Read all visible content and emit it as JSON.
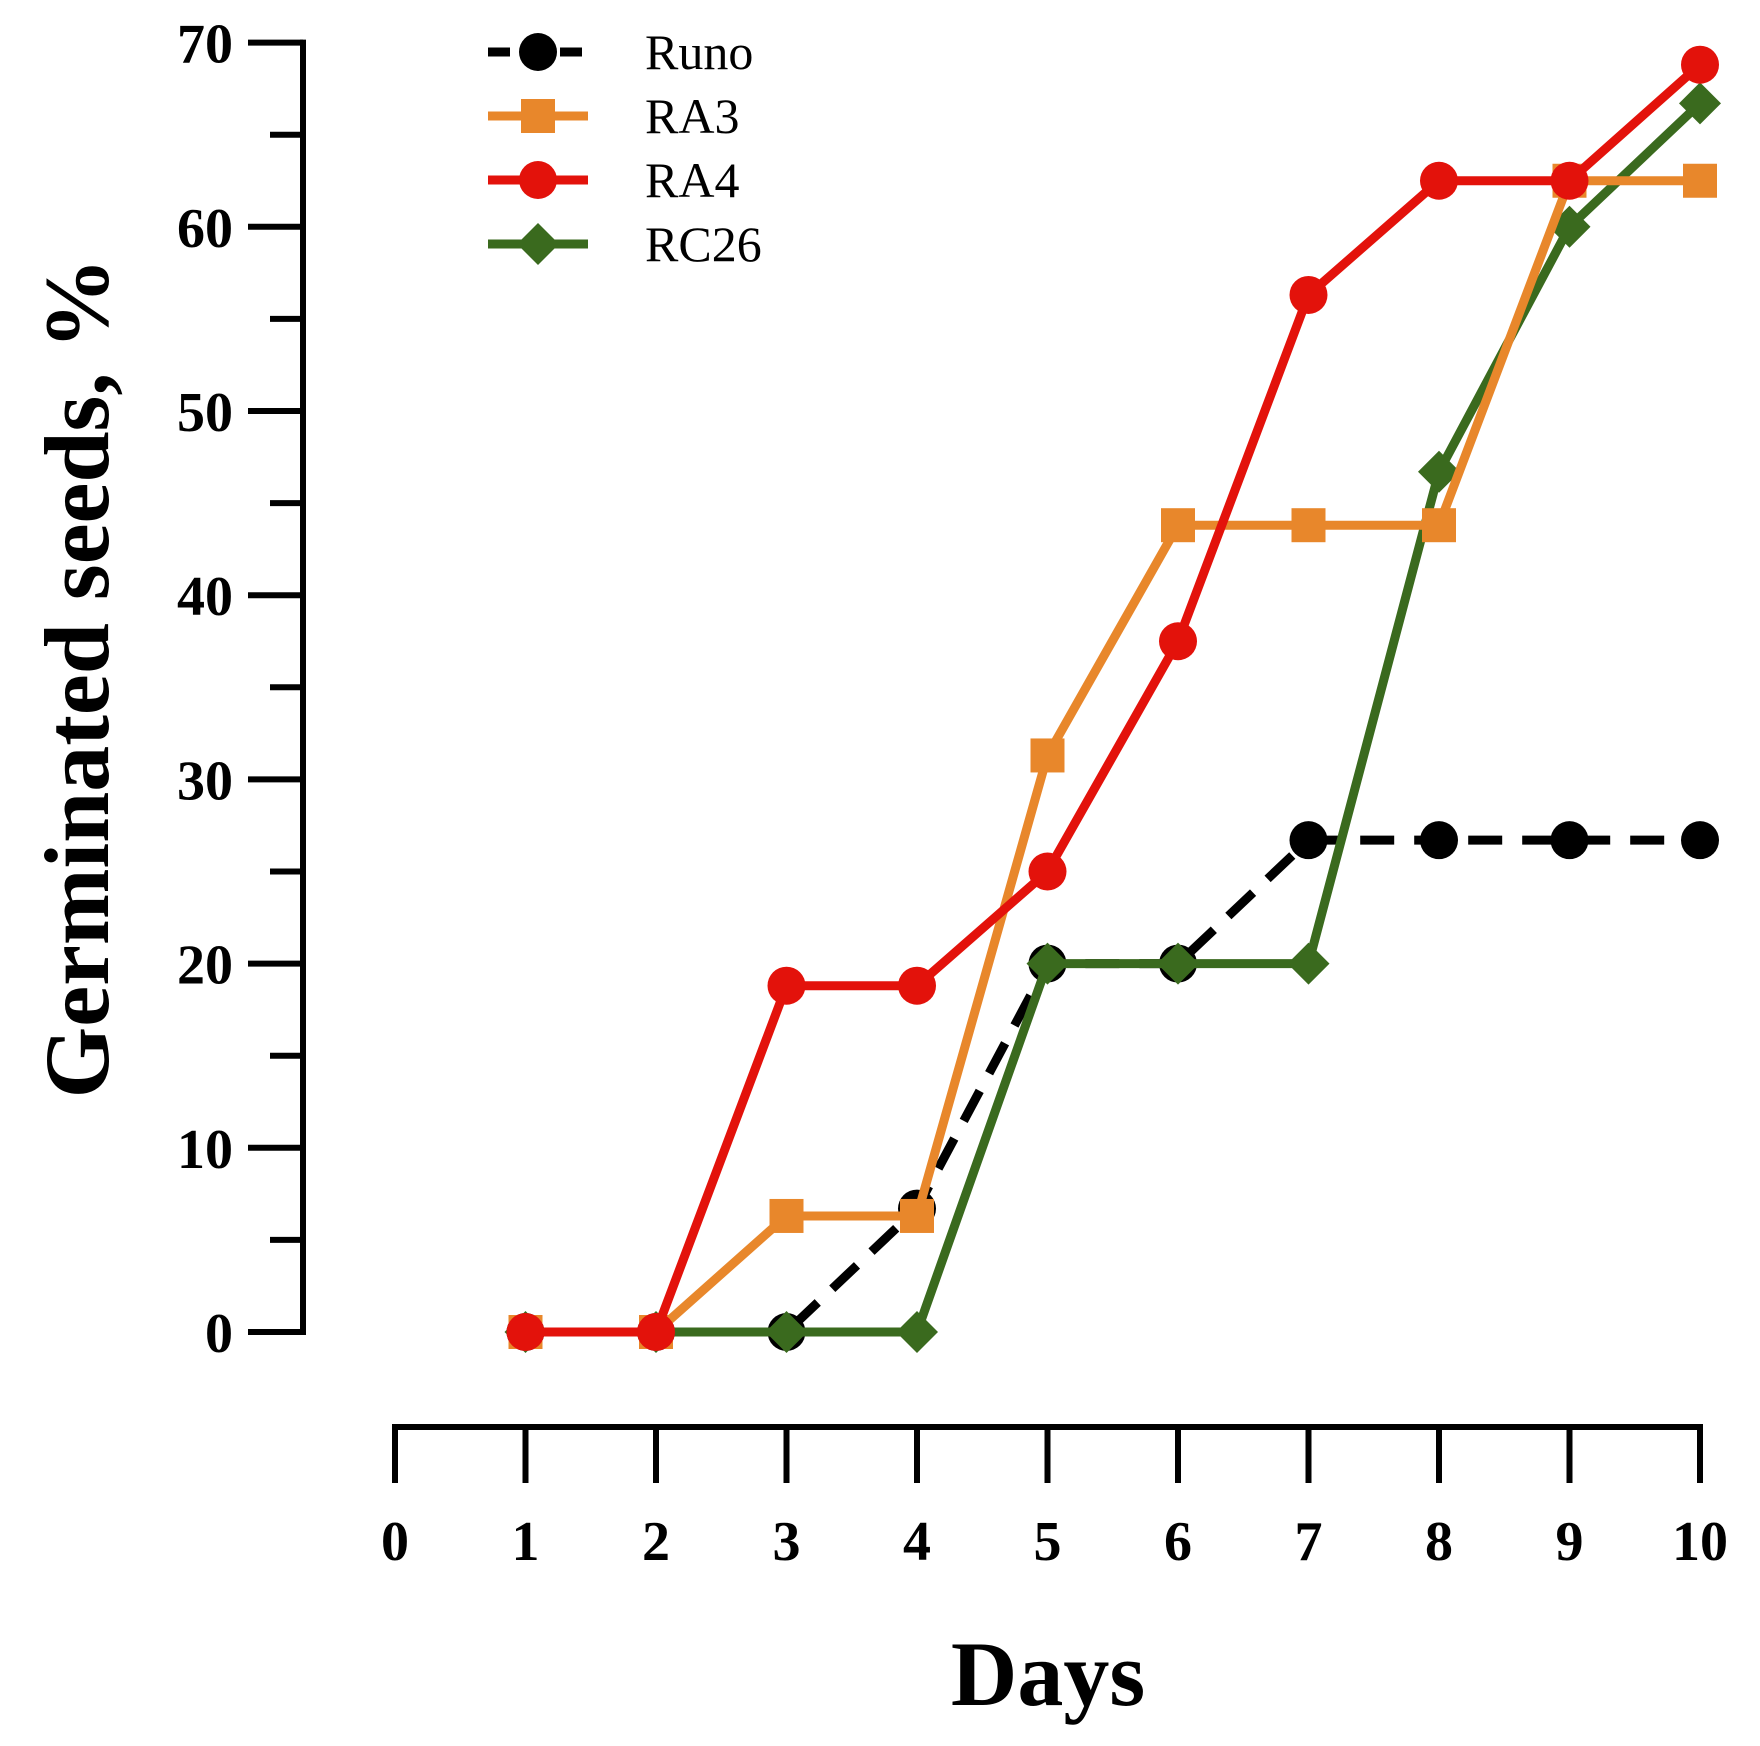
{
  "chart_data": {
    "type": "line",
    "xlabel": "Days",
    "ylabel": "Germinated seeds, %",
    "xlim": [
      0,
      10
    ],
    "ylim": [
      0,
      70
    ],
    "x_ticks": [
      "0",
      "1",
      "2",
      "3",
      "4",
      "5",
      "6",
      "7",
      "8",
      "9",
      "10"
    ],
    "y_ticks": [
      "0",
      "10",
      "20",
      "30",
      "40",
      "50",
      "60",
      "70"
    ],
    "grid": false,
    "legend_position": "top-left",
    "series": [
      {
        "name": "Runo",
        "color": "#000000",
        "dashed": true,
        "marker": "circle",
        "x": [
          1,
          2,
          3,
          4,
          5,
          6,
          7,
          8,
          9,
          10
        ],
        "values": [
          0,
          0,
          0,
          6.7,
          20,
          20,
          26.7,
          26.7,
          26.7,
          26.7
        ]
      },
      {
        "name": "RA3",
        "color": "#E8872B",
        "dashed": false,
        "marker": "square",
        "x": [
          1,
          2,
          3,
          4,
          5,
          6,
          7,
          8,
          9,
          10
        ],
        "values": [
          0,
          0,
          6.3,
          6.3,
          31.3,
          43.8,
          43.8,
          43.8,
          62.5,
          62.5
        ]
      },
      {
        "name": "RA4",
        "color": "#E3120B",
        "dashed": false,
        "marker": "circle",
        "x": [
          1,
          2,
          3,
          4,
          5,
          6,
          7,
          8,
          9,
          10
        ],
        "values": [
          0,
          0,
          18.8,
          18.8,
          25,
          37.5,
          56.3,
          62.5,
          62.5,
          68.8
        ]
      },
      {
        "name": "RC26",
        "color": "#3A6A1E",
        "dashed": false,
        "marker": "diamond",
        "x": [
          1,
          2,
          3,
          4,
          5,
          6,
          7,
          8,
          9,
          10
        ],
        "values": [
          0,
          0,
          0,
          0,
          20,
          20,
          20,
          46.7,
          60,
          66.7
        ]
      }
    ]
  }
}
